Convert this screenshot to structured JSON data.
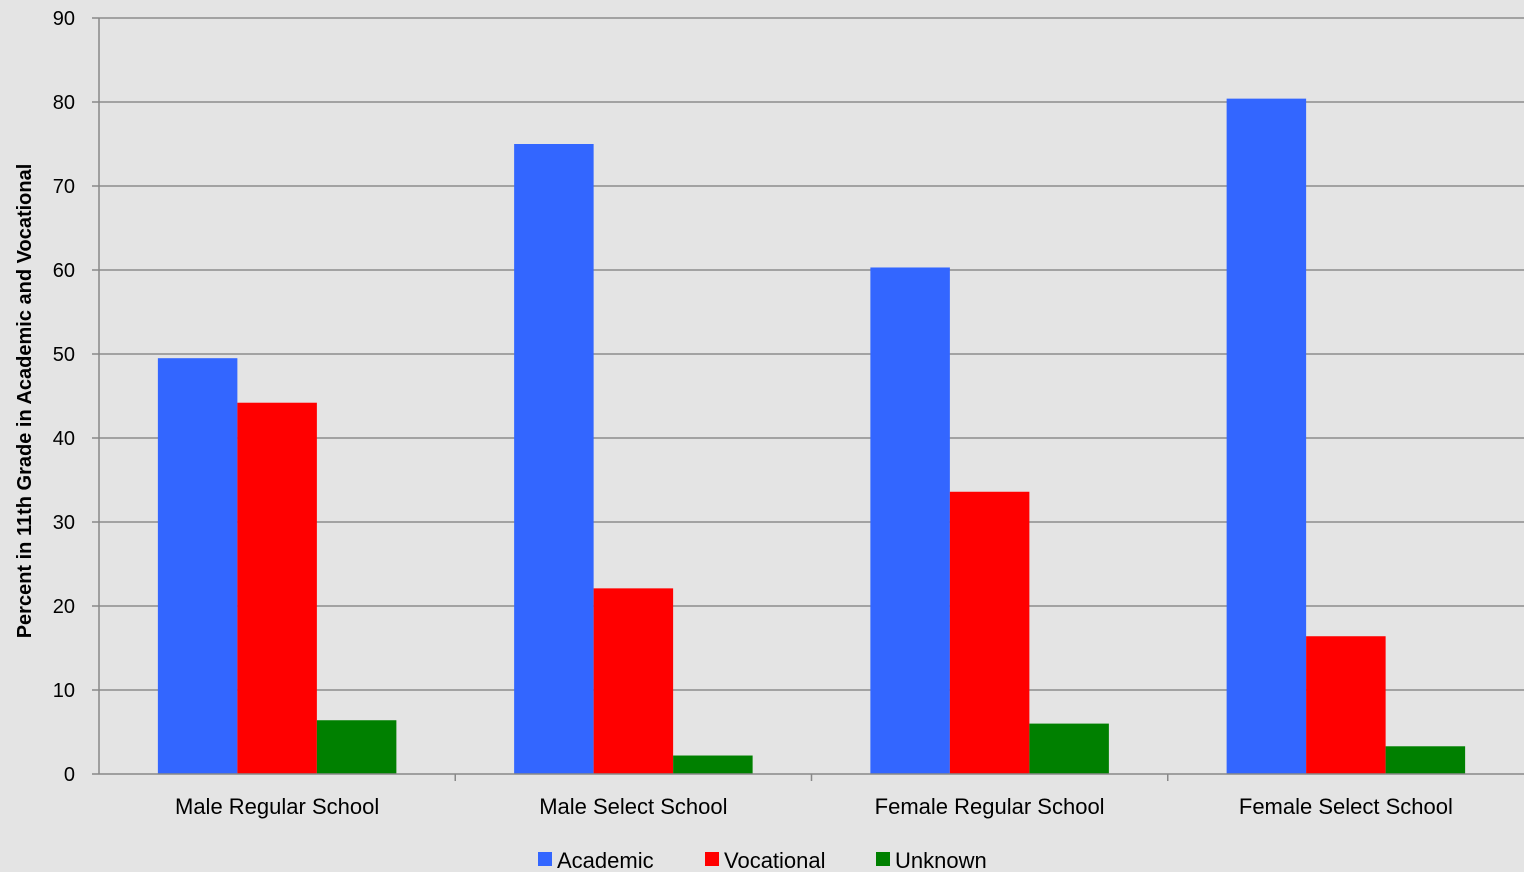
{
  "chart_data": {
    "type": "bar",
    "title": "",
    "xlabel": "",
    "ylabel": "Percent in 11th Grade in Academic and Vocational",
    "ylim": [
      0,
      90
    ],
    "yticks": [
      0,
      10,
      20,
      30,
      40,
      50,
      60,
      70,
      80,
      90
    ],
    "grid": true,
    "legend_position": "bottom",
    "categories": [
      "Male Regular School",
      "Male Select School",
      "Female Regular School",
      "Female Select School"
    ],
    "series": [
      {
        "name": "Academic",
        "color": "#3366ff",
        "values": [
          49.5,
          75,
          60.3,
          80.4
        ]
      },
      {
        "name": "Vocational",
        "color": "#ff0000",
        "values": [
          44.2,
          22.1,
          33.6,
          16.4
        ]
      },
      {
        "name": "Unknown",
        "color": "#008000",
        "values": [
          6.4,
          2.2,
          6.0,
          3.3
        ]
      }
    ]
  }
}
